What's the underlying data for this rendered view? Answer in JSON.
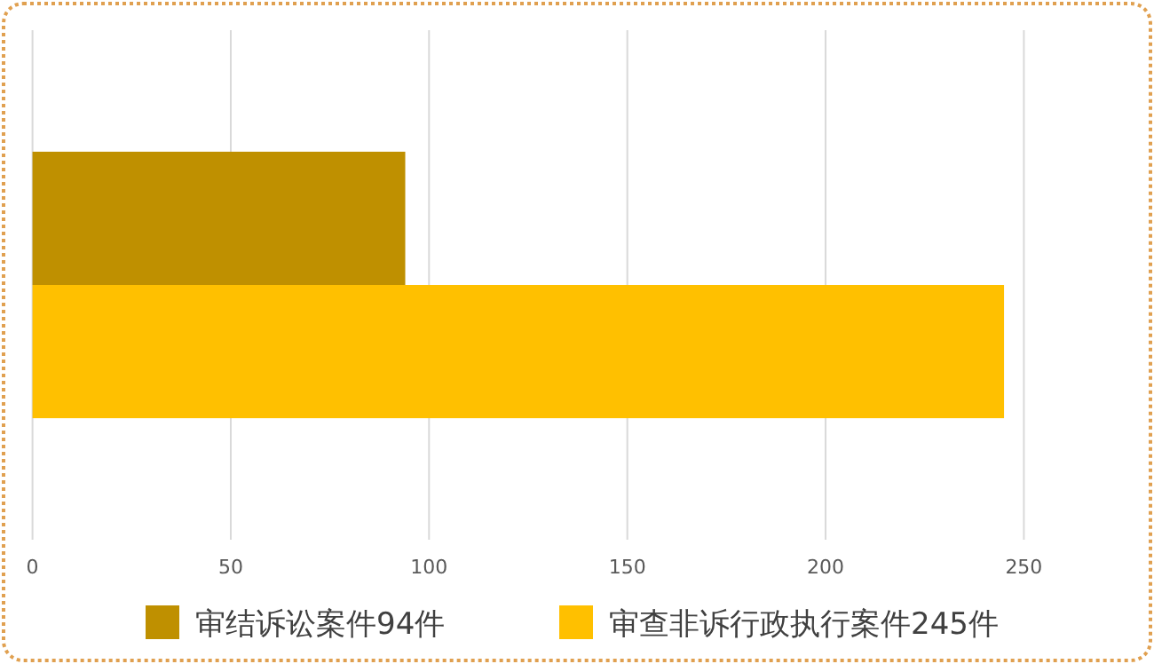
{
  "chart_data": {
    "type": "bar",
    "orientation": "horizontal",
    "categories": [
      null
    ],
    "series": [
      {
        "name": "审结诉讼案件94件",
        "color": "#bf9000",
        "values": [
          94
        ]
      },
      {
        "name": "审查非诉行政执行案件245件",
        "color": "#ffc000",
        "values": [
          245
        ]
      }
    ],
    "xlim": [
      0,
      250
    ],
    "xticks": [
      0,
      50,
      100,
      150,
      200,
      250
    ],
    "grid": "x",
    "legend": "bottom"
  }
}
